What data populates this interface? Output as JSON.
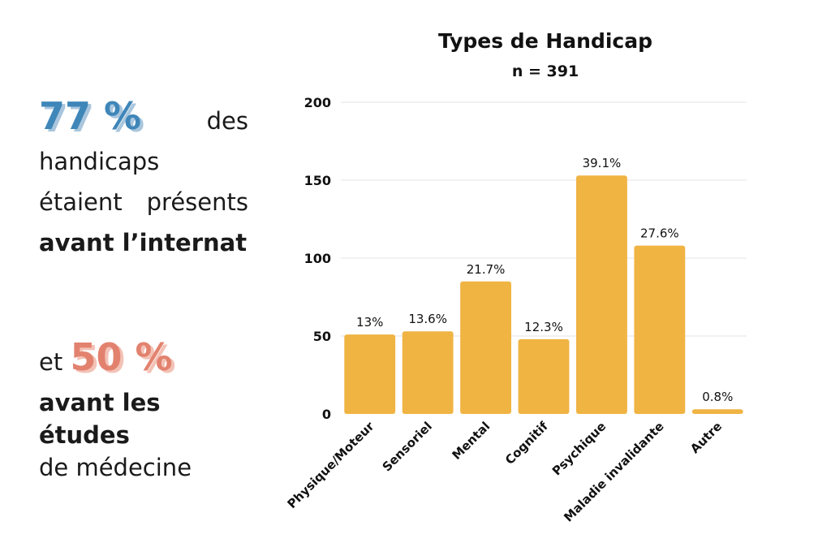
{
  "left": {
    "stat1_value": "77 %",
    "stat1_word": "des",
    "stat1_line2": "handicaps",
    "stat1_line3_a": "étaient",
    "stat1_line3_b": "présents",
    "stat1_line4": "avant l’internat",
    "stat2_prefix": "et",
    "stat2_value": "50 %",
    "stat2_line2": "avant les études",
    "stat2_line3": "de médecine"
  },
  "colors": {
    "bar": "#f0b443",
    "blue": "#3f86b9",
    "salmon": "#e2826e",
    "grid": "#e3e3e3"
  },
  "chart_data": {
    "type": "bar",
    "title": "Types de Handicap",
    "subtitle": "n = 391",
    "xlabel": "",
    "ylabel": "",
    "ylim": [
      0,
      200
    ],
    "yticks": [
      0,
      50,
      100,
      150,
      200
    ],
    "grid": true,
    "categories": [
      "Physique/Moteur",
      "Sensoriel",
      "Mental",
      "Cognitif",
      "Psychique",
      "Maladie invalidante",
      "Autre"
    ],
    "values": [
      51,
      53,
      85,
      48,
      153,
      108,
      3
    ],
    "data_labels": [
      "13%",
      "13.6%",
      "21.7%",
      "12.3%",
      "39.1%",
      "27.6%",
      "0.8%"
    ]
  }
}
